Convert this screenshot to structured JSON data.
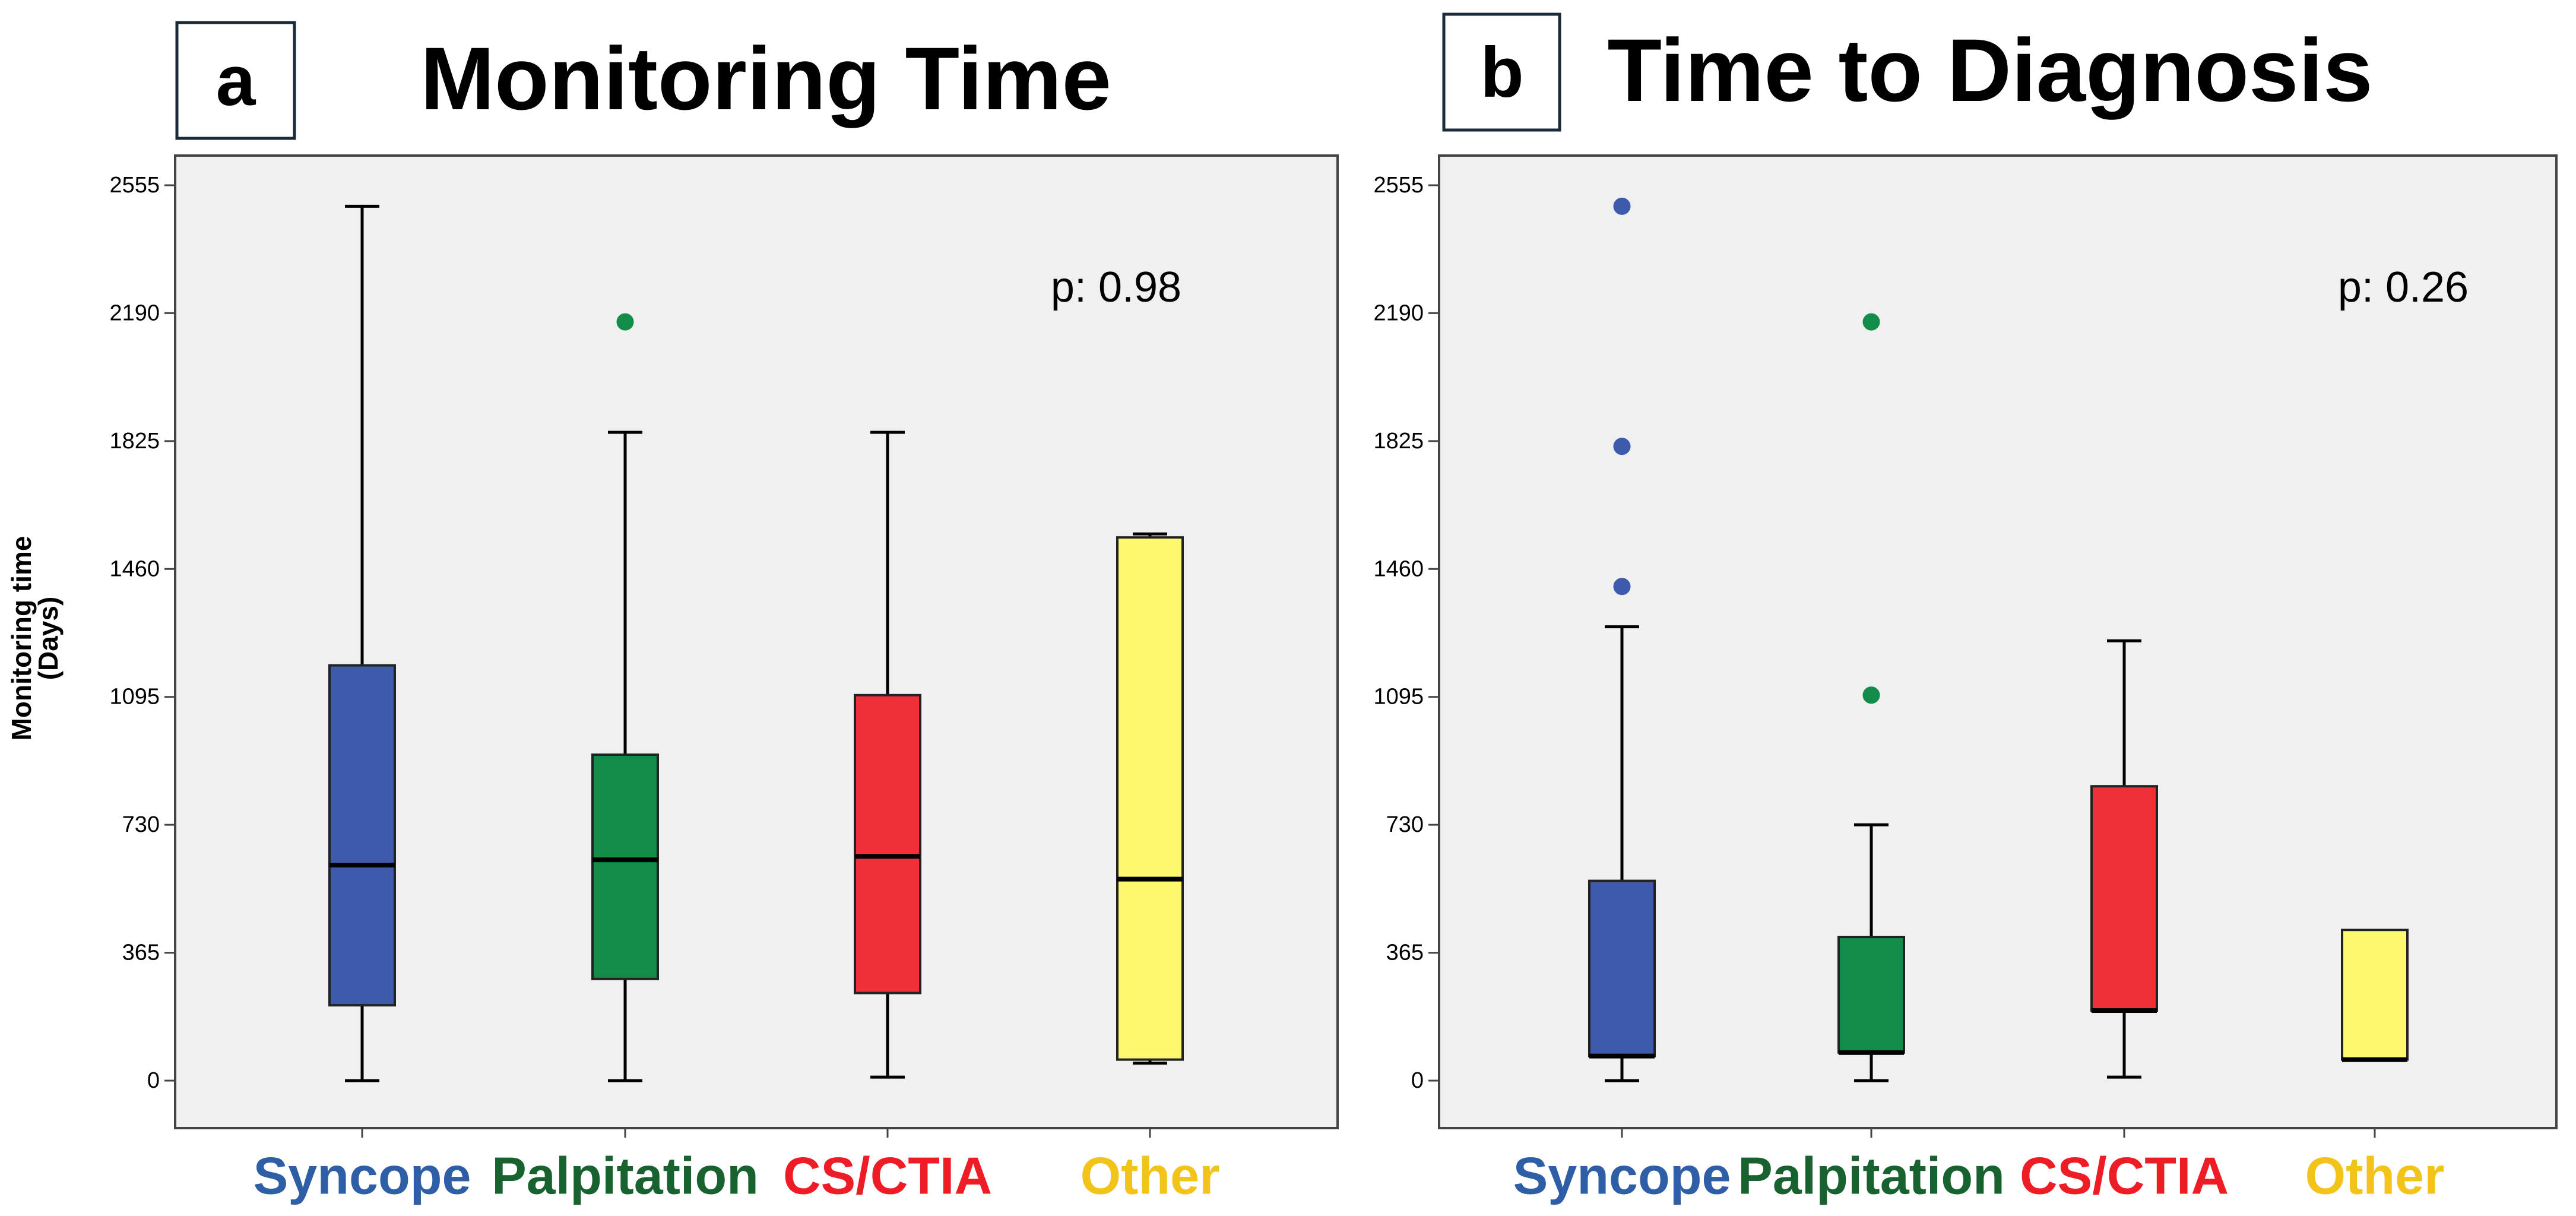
{
  "figure": {
    "y_axis_title_line1": "Monitoring time",
    "y_axis_title_line2": "(Days)"
  },
  "chart_data": [
    {
      "type": "boxplot",
      "panel_letter": "a",
      "title": "Monitoring Time",
      "ylabel": "Monitoring time (Days)",
      "ylim": [
        -120,
        2620
      ],
      "yticks": [
        0,
        365,
        730,
        1095,
        1460,
        1825,
        2190,
        2555
      ],
      "annotation": "p: 0.98",
      "categories": [
        {
          "label": "Syncope",
          "color": "#3d5aad",
          "label_color": "#2e5ea5",
          "whisker_low": 0,
          "q1": 215,
          "median": 615,
          "q3": 1185,
          "whisker_high": 2495,
          "outliers": [],
          "show_whiskers": true
        },
        {
          "label": "Palpitation",
          "color": "#128c48",
          "label_color": "#17622f",
          "whisker_low": 0,
          "q1": 290,
          "median": 630,
          "q3": 930,
          "whisker_high": 1850,
          "outliers": [
            2165
          ],
          "show_whiskers": true
        },
        {
          "label": "CS/CTIA",
          "color": "#f03038",
          "label_color": "#ee1c24",
          "whisker_low": 10,
          "q1": 250,
          "median": 640,
          "q3": 1100,
          "whisker_high": 1850,
          "outliers": [],
          "show_whiskers": true
        },
        {
          "label": "Other",
          "color": "#fcf96f",
          "label_color": "#f2c318",
          "whisker_low": 50,
          "q1": 60,
          "median": 575,
          "q3": 1550,
          "whisker_high": 1560,
          "outliers": [],
          "show_whiskers": true
        }
      ]
    },
    {
      "type": "boxplot",
      "panel_letter": "b",
      "title": "Time to Diagnosis",
      "ylabel": "",
      "ylim": [
        -120,
        2620
      ],
      "yticks": [
        0,
        365,
        730,
        1095,
        1460,
        1825,
        2190,
        2555
      ],
      "annotation": "p: 0.26",
      "categories": [
        {
          "label": "Syncope",
          "color": "#3d5aad",
          "label_color": "#2e5ea5",
          "whisker_low": 0,
          "q1": 70,
          "median": 70,
          "q3": 570,
          "whisker_high": 1295,
          "outliers": [
            1410,
            1810,
            2495
          ],
          "show_whiskers": true
        },
        {
          "label": "Palpitation",
          "color": "#128c48",
          "label_color": "#17622f",
          "whisker_low": 0,
          "q1": 80,
          "median": 80,
          "q3": 410,
          "whisker_high": 730,
          "outliers": [
            1100,
            2165
          ],
          "show_whiskers": true
        },
        {
          "label": "CS/CTIA",
          "color": "#f03038",
          "label_color": "#ee1c24",
          "whisker_low": 10,
          "q1": 200,
          "median": 200,
          "q3": 840,
          "whisker_high": 1255,
          "outliers": [],
          "show_whiskers": true
        },
        {
          "label": "Other",
          "color": "#fcf96f",
          "label_color": "#f2c318",
          "whisker_low": 60,
          "q1": 60,
          "median": 60,
          "q3": 430,
          "whisker_high": 430,
          "outliers": [],
          "show_whiskers": false
        }
      ]
    }
  ]
}
